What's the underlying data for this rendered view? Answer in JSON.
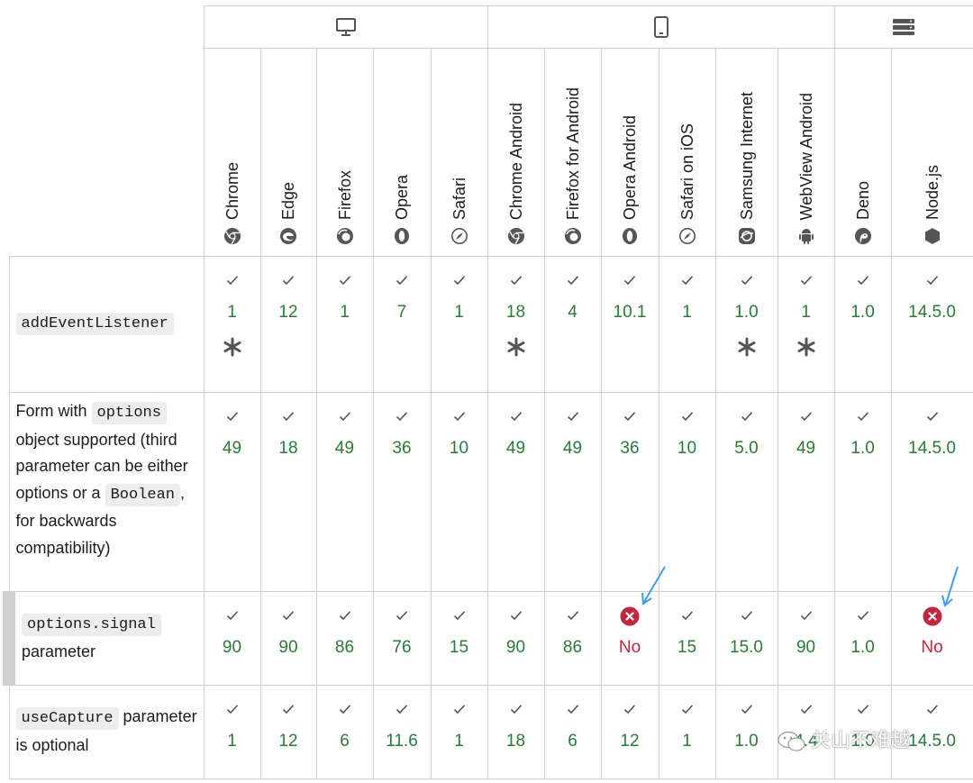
{
  "platforms": [
    {
      "name": "desktop",
      "icon": "desktop-monitor-icon",
      "span": 5
    },
    {
      "name": "mobile",
      "icon": "mobile-phone-icon",
      "span": 6
    },
    {
      "name": "server",
      "icon": "server-icon",
      "span": 2
    }
  ],
  "browsers": [
    {
      "label": "Chrome",
      "icon": "chrome-icon"
    },
    {
      "label": "Edge",
      "icon": "edge-icon"
    },
    {
      "label": "Firefox",
      "icon": "firefox-icon"
    },
    {
      "label": "Opera",
      "icon": "opera-icon"
    },
    {
      "label": "Safari",
      "icon": "safari-icon"
    },
    {
      "label": "Chrome Android",
      "icon": "chrome-icon"
    },
    {
      "label": "Firefox for Android",
      "icon": "firefox-icon"
    },
    {
      "label": "Opera Android",
      "icon": "opera-icon"
    },
    {
      "label": "Safari on iOS",
      "icon": "safari-icon"
    },
    {
      "label": "Samsung Internet",
      "icon": "samsung-internet-icon"
    },
    {
      "label": "WebView Android",
      "icon": "android-icon"
    },
    {
      "label": "Deno",
      "icon": "deno-icon"
    },
    {
      "label": "Node.js",
      "icon": "nodejs-icon"
    }
  ],
  "features": [
    {
      "parts": [
        {
          "code": "addEventListener"
        }
      ],
      "versions": [
        "1",
        "12",
        "1",
        "7",
        "1",
        "18",
        "4",
        "10.1",
        "1",
        "1.0",
        "1",
        "1.0",
        "14.5.0"
      ],
      "notes": [
        true,
        false,
        false,
        false,
        false,
        true,
        false,
        false,
        false,
        true,
        true,
        false,
        false
      ]
    },
    {
      "parts": [
        {
          "text": "Form with "
        },
        {
          "code": "options"
        },
        {
          "text": " object supported (third parameter can be either options or a "
        },
        {
          "code": "Boolean"
        },
        {
          "text": ", for backwards compatibility)"
        }
      ],
      "versions": [
        "49",
        "18",
        "49",
        "36",
        "10",
        "49",
        "49",
        "36",
        "10",
        "5.0",
        "49",
        "1.0",
        "14.5.0"
      ]
    },
    {
      "parts": [
        {
          "code": "options.signal"
        },
        {
          "text": " parameter"
        }
      ],
      "versions": [
        "90",
        "90",
        "86",
        "76",
        "15",
        "90",
        "86",
        "No",
        "15",
        "15.0",
        "90",
        "1.0",
        "No"
      ],
      "subfeature": true
    },
    {
      "parts": [
        {
          "code": "useCapture"
        },
        {
          "text": " parameter is optional"
        }
      ],
      "versions": [
        "1",
        "12",
        "6",
        "11.6",
        "1",
        "18",
        "6",
        "12",
        "1",
        "1.0",
        "4.4",
        "1.0",
        "14.5.0"
      ]
    }
  ],
  "colors": {
    "supported": "#2a7b39",
    "unsupported": "#c1253f",
    "arrow": "#3d9ee8",
    "border": "#cfcfcf"
  },
  "watermark": {
    "text": "关山不难越",
    "icon": "wechat-icon"
  }
}
